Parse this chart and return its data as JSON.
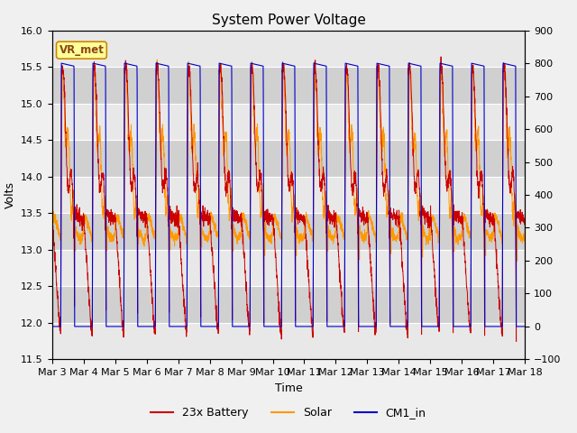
{
  "title": "System Power Voltage",
  "xlabel": "Time",
  "ylabel": "Volts",
  "ylim_left": [
    11.5,
    16.0
  ],
  "ylim_right": [
    -100,
    900
  ],
  "yticks_left": [
    11.5,
    12.0,
    12.5,
    13.0,
    13.5,
    14.0,
    14.5,
    15.0,
    15.5,
    16.0
  ],
  "yticks_right": [
    -100,
    0,
    100,
    200,
    300,
    400,
    500,
    600,
    700,
    800,
    900
  ],
  "xtick_labels": [
    "Mar 3",
    "Mar 4",
    "Mar 5",
    "Mar 6",
    "Mar 7",
    "Mar 8",
    "Mar 9",
    "Mar 10",
    "Mar 11",
    "Mar 12",
    "Mar 13",
    "Mar 14",
    "Mar 15",
    "Mar 16",
    "Mar 17",
    "Mar 18"
  ],
  "annotation_text": "VR_met",
  "legend_labels": [
    "23x Battery",
    "Solar",
    "CM1_in"
  ],
  "legend_colors": [
    "#cc0000",
    "#ff9900",
    "#0000cc"
  ],
  "fig_bg_color": "#f0f0f0",
  "plot_bg_color": "#d8d8d8",
  "band_light": "#e8e8e8",
  "band_dark": "#d0d0d0",
  "title_fontsize": 11,
  "axis_fontsize": 9,
  "tick_fontsize": 8
}
